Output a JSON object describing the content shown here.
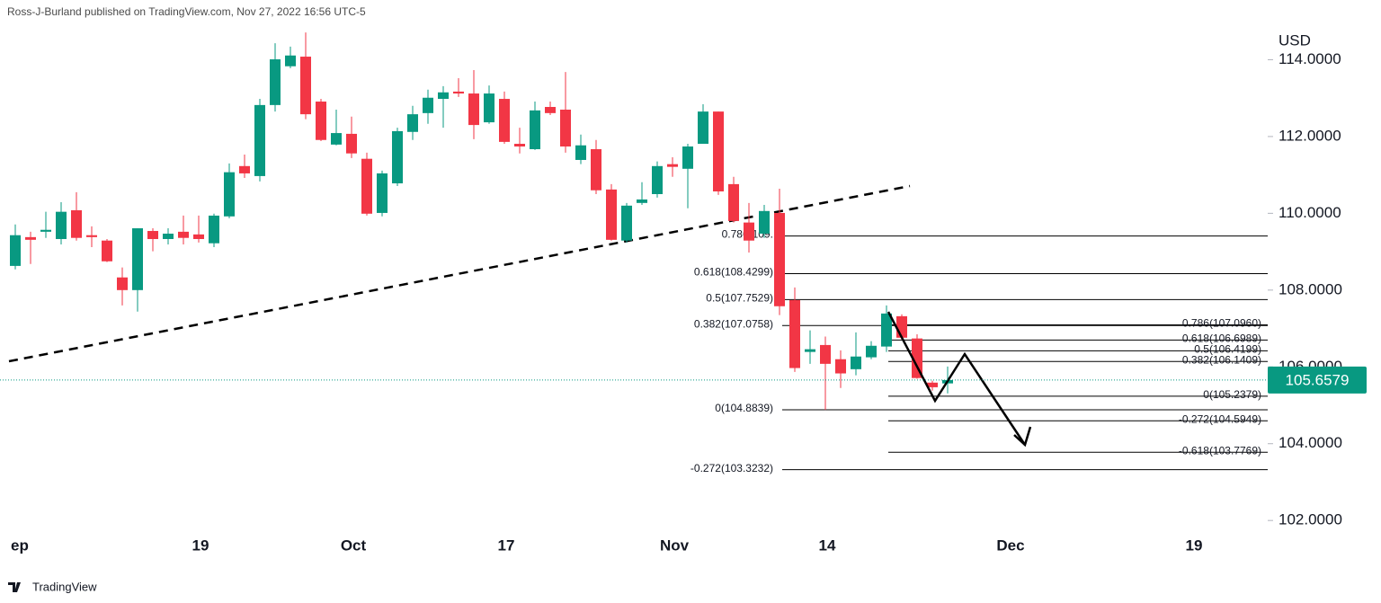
{
  "chart_data": {
    "type": "candlestick",
    "header": "Ross-J-Burland published on TradingView.com, Nov 27, 2022 16:56 UTC-5",
    "y_axis_label": "USD",
    "footer": "TradingView",
    "categories": [
      "ep",
      null,
      null,
      null,
      null,
      null,
      null,
      null,
      null,
      null,
      null,
      null,
      "19",
      null,
      null,
      null,
      null,
      null,
      null,
      null,
      null,
      null,
      "Oct",
      null,
      null,
      null,
      null,
      null,
      null,
      null,
      null,
      null,
      "17",
      null,
      null,
      null,
      null,
      null,
      null,
      null,
      null,
      null,
      null,
      "Nov",
      null,
      null,
      null,
      null,
      null,
      null,
      null,
      null,
      null,
      "14",
      null,
      null,
      null,
      null,
      null,
      null,
      null,
      null,
      null,
      null,
      null,
      "Dec",
      null,
      null,
      null,
      null,
      null,
      null,
      null,
      null,
      null,
      null,
      null,
      "19",
      null
    ],
    "series": {
      "open": [
        108.63,
        109.38,
        109.52,
        109.33,
        110.08,
        109.43,
        109.29,
        108.33,
        108.0,
        109.54,
        109.33,
        109.52,
        109.45,
        109.22,
        109.92,
        111.23,
        110.97,
        112.82,
        113.83,
        114.08,
        112.91,
        111.79,
        112.07,
        111.42,
        110.01,
        110.78,
        112.12,
        112.61,
        112.98,
        113.17,
        113.12,
        112.37,
        112.98,
        111.81,
        111.67,
        112.77,
        112.7,
        111.39,
        111.67,
        110.62,
        109.29,
        110.27,
        110.5,
        111.28,
        111.16,
        111.81,
        112.65,
        110.76,
        109.76,
        109.47,
        110.01,
        107.74,
        106.39,
        106.57,
        106.2,
        105.94,
        106.25,
        106.53,
        107.32,
        106.74,
        105.59,
        105.57,
        null,
        null,
        null,
        null,
        null,
        null,
        null,
        null,
        null,
        null,
        null,
        null,
        null,
        null,
        null,
        null,
        null
      ],
      "high": [
        109.71,
        109.52,
        110.04,
        110.29,
        110.55,
        109.66,
        109.33,
        108.59,
        109.61,
        109.61,
        109.61,
        109.94,
        109.94,
        109.99,
        111.3,
        111.53,
        112.98,
        114.43,
        114.34,
        114.71,
        112.98,
        112.7,
        112.52,
        111.58,
        111.11,
        112.23,
        112.8,
        113.22,
        113.31,
        113.52,
        113.73,
        113.33,
        113.17,
        112.23,
        112.91,
        112.91,
        113.68,
        112.05,
        111.91,
        110.76,
        110.27,
        110.81,
        111.35,
        111.46,
        111.81,
        112.84,
        112.65,
        110.95,
        110.27,
        110.22,
        110.64,
        108.07,
        106.95,
        106.79,
        106.43,
        106.9,
        106.67,
        107.6,
        107.37,
        106.85,
        105.64,
        106.01,
        null,
        null,
        null,
        null,
        null,
        null,
        null,
        null,
        null,
        null,
        null,
        null,
        null,
        null,
        null,
        null,
        null
      ],
      "low": [
        108.54,
        108.68,
        109.36,
        109.19,
        109.29,
        109.12,
        108.73,
        107.6,
        107.44,
        109.01,
        109.19,
        109.19,
        109.24,
        109.12,
        109.87,
        110.92,
        110.83,
        112.65,
        113.78,
        112.45,
        111.88,
        111.77,
        111.44,
        109.94,
        109.92,
        110.71,
        111.91,
        112.33,
        112.23,
        113.03,
        111.93,
        112.33,
        111.81,
        111.56,
        111.65,
        112.56,
        111.58,
        111.28,
        110.5,
        109.29,
        109.24,
        110.22,
        110.41,
        110.95,
        110.13,
        111.81,
        110.48,
        109.76,
        108.98,
        109.36,
        107.35,
        105.87,
        106.08,
        104.88,
        105.45,
        105.78,
        106.2,
        106.39,
        106.71,
        105.69,
        105.38,
        105.31,
        null,
        null,
        null,
        null,
        null,
        null,
        null,
        null,
        null,
        null,
        null,
        null,
        null,
        null,
        null,
        null,
        null
      ],
      "close": [
        109.43,
        109.31,
        109.57,
        110.04,
        109.36,
        109.38,
        108.75,
        108.0,
        109.61,
        109.33,
        109.47,
        109.36,
        109.33,
        109.94,
        111.07,
        111.04,
        112.82,
        114.01,
        114.11,
        112.58,
        111.91,
        112.09,
        111.56,
        109.99,
        111.04,
        112.14,
        112.58,
        113.01,
        113.15,
        113.12,
        112.3,
        113.12,
        111.86,
        111.74,
        112.68,
        112.61,
        111.74,
        111.77,
        110.6,
        109.31,
        110.2,
        110.36,
        111.23,
        111.21,
        111.74,
        112.65,
        110.57,
        109.8,
        109.29,
        110.06,
        107.58,
        105.97,
        106.46,
        106.08,
        105.83,
        106.27,
        106.55,
        107.39,
        106.76,
        105.71,
        105.47,
        105.6579,
        null,
        null,
        null,
        null,
        null,
        null,
        null,
        null,
        null,
        null,
        null,
        null,
        null,
        null,
        null,
        null,
        null
      ]
    },
    "up_color": "#089981",
    "down_color": "#f23645",
    "ylim": [
      101.7,
      114.9
    ],
    "yticks": [
      {
        "value": 102,
        "label": "102.0000"
      },
      {
        "value": 104,
        "label": "104.0000"
      },
      {
        "value": 106,
        "label": "106.0000"
      },
      {
        "value": 108,
        "label": "108.0000"
      },
      {
        "value": 110,
        "label": "110.0000"
      },
      {
        "value": 112,
        "label": "112.0000"
      },
      {
        "value": 114,
        "label": "114.0000"
      }
    ],
    "last_price": 105.6579,
    "fib_sets": [
      [
        {
          "value": 109.41,
          "label": "0.786(109."
        },
        {
          "value": 108.4299,
          "label": "0.618(108.4299)"
        },
        {
          "value": 107.7529,
          "label": "0.5(107.7529)"
        },
        {
          "value": 107.0758,
          "label": "0.382(107.0758)"
        },
        {
          "value": 104.8839,
          "label": "0(104.8839)"
        },
        {
          "value": 103.3232,
          "label": "-0.272(103.3232)"
        }
      ],
      [
        {
          "value": 107.096,
          "label": "0.786(107.0960)"
        },
        {
          "value": 106.6989,
          "label": "0.618(106.6989)"
        },
        {
          "value": 106.4199,
          "label": "0.5(106.4199)"
        },
        {
          "value": 106.1409,
          "label": "0.382(106.1409)"
        },
        {
          "value": 105.2379,
          "label": "0(105.2379)"
        },
        {
          "value": 104.5949,
          "label": "-0.272(104.5949)"
        },
        {
          "value": 103.7769,
          "label": "-0.618(103.7769)"
        }
      ]
    ]
  }
}
